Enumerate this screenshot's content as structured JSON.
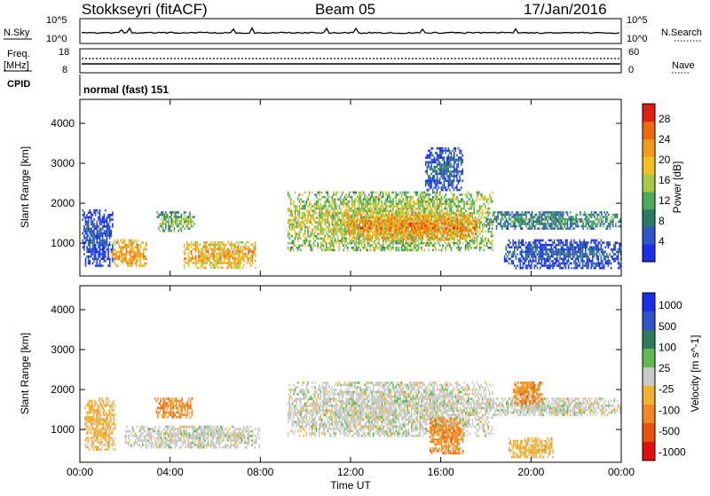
{
  "header": {
    "station": "Stokkseyri (fitACF)",
    "beam": "Beam 05",
    "date": "17/Jan/2016",
    "mode": "normal (fast) 151"
  },
  "left_labels": {
    "nsky": "N.Sky",
    "freq_line1": "Freq.",
    "freq_line2": "[MHz]",
    "cpid": "CPID",
    "nsky_ticks": [
      "10^5",
      "10^0"
    ],
    "freq_ticks": [
      "18",
      "8"
    ]
  },
  "right_labels": {
    "nsearch": "N.Search",
    "nave": "Nave",
    "nsearch_ticks": [
      "10^5",
      "10^0"
    ],
    "nave_ticks": [
      "60",
      "0"
    ]
  },
  "colors": {
    "power_scale": [
      "#1a2ee6",
      "#2f55c8",
      "#2e7a6a",
      "#4caa5a",
      "#a8c84a",
      "#f0c020",
      "#f39a1c",
      "#ee6a10",
      "#e02010"
    ],
    "velocity_scale": [
      "#1a2ee6",
      "#2f55c8",
      "#2e7a5a",
      "#60b850",
      "#c8c8c4",
      "#f0b030",
      "#f08a20",
      "#e85010",
      "#e01010"
    ]
  },
  "chart_data": [
    {
      "type": "heatmap",
      "title": "",
      "quantity": "Power [dB]",
      "xlabel": "Time UT",
      "ylabel": "Slant Range [km]",
      "x_ticks": [
        "00:00",
        "04:00",
        "08:00",
        "12:00",
        "16:00",
        "20:00",
        "00:00"
      ],
      "y_ticks": [
        "1000",
        "2000",
        "3000",
        "4000"
      ],
      "xlim_hours": [
        0,
        24
      ],
      "ylim_km": [
        180,
        4600
      ],
      "colorbar_ticks": [
        "4",
        "8",
        "12",
        "16",
        "20",
        "24",
        "28"
      ],
      "colorbar_range": [
        0,
        31
      ],
      "echo_regions": [
        {
          "t": [
            0.1,
            1.5
          ],
          "r": [
            420,
            1850
          ],
          "level": 5
        },
        {
          "t": [
            1.4,
            3.0
          ],
          "r": [
            420,
            1100
          ],
          "level": 23
        },
        {
          "t": [
            3.4,
            5.1
          ],
          "r": [
            1300,
            1800
          ],
          "level": 14
        },
        {
          "t": [
            4.6,
            7.8
          ],
          "r": [
            350,
            1050
          ],
          "level": 22
        },
        {
          "t": [
            9.2,
            18.3
          ],
          "r": [
            800,
            2300
          ],
          "level": 17
        },
        {
          "t": [
            11.8,
            17.6
          ],
          "r": [
            1050,
            1750
          ],
          "level": 24
        },
        {
          "t": [
            18.0,
            24.0
          ],
          "r": [
            1350,
            1800
          ],
          "level": 11
        },
        {
          "t": [
            18.8,
            24.0
          ],
          "r": [
            350,
            1100
          ],
          "level": 6
        },
        {
          "t": [
            15.3,
            17.0
          ],
          "r": [
            2300,
            3400
          ],
          "level": 7
        }
      ]
    },
    {
      "type": "heatmap",
      "title": "",
      "quantity": "Velocity [m s^-1]",
      "xlabel": "Time UT",
      "ylabel": "Slant Range [km]",
      "x_ticks": [
        "00:00",
        "04:00",
        "08:00",
        "12:00",
        "16:00",
        "20:00",
        "00:00"
      ],
      "y_ticks": [
        "1000",
        "2000",
        "3000",
        "4000"
      ],
      "xlim_hours": [
        0,
        24
      ],
      "ylim_km": [
        180,
        4600
      ],
      "colorbar_ticks": [
        "1000",
        "500",
        "100",
        "25",
        "-25",
        "-100",
        "-500",
        "-1000"
      ],
      "echo_regions": [
        {
          "t": [
            0.2,
            1.6
          ],
          "r": [
            500,
            1800
          ],
          "level": "-100"
        },
        {
          "t": [
            3.3,
            5.0
          ],
          "r": [
            1300,
            1800
          ],
          "level": "-500"
        },
        {
          "t": [
            2.0,
            8.0
          ],
          "r": [
            500,
            1100
          ],
          "level": "-25"
        },
        {
          "t": [
            9.2,
            18.3
          ],
          "r": [
            800,
            2200
          ],
          "level": "25"
        },
        {
          "t": [
            15.5,
            17.0
          ],
          "r": [
            400,
            1300
          ],
          "level": "-500"
        },
        {
          "t": [
            18.0,
            24.0
          ],
          "r": [
            1350,
            1800
          ],
          "level": "25"
        },
        {
          "t": [
            19.0,
            21.0
          ],
          "r": [
            300,
            800
          ],
          "level": "-100"
        },
        {
          "t": [
            19.2,
            20.5
          ],
          "r": [
            1600,
            2200
          ],
          "level": "-500"
        }
      ]
    }
  ]
}
